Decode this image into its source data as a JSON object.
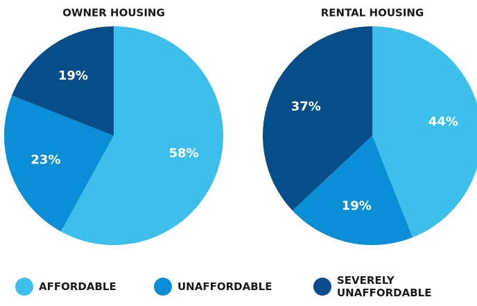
{
  "chart_data": [
    {
      "type": "pie",
      "title": "OWNER HOUSING",
      "categories": [
        "AFFORDABLE",
        "UNAFFORDABLE",
        "SEVERELY UNAFFORDABLE"
      ],
      "values": [
        58,
        23,
        19
      ],
      "value_labels": [
        "58%",
        "23%",
        "19%"
      ],
      "colors": [
        "#3dbfec",
        "#0a8fd6",
        "#064d8a"
      ]
    },
    {
      "type": "pie",
      "title": "RENTAL HOUSING",
      "categories": [
        "AFFORDABLE",
        "UNAFFORDABLE",
        "SEVERELY UNAFFORDABLE"
      ],
      "values": [
        44,
        19,
        37
      ],
      "value_labels": [
        "44%",
        "19%",
        "37%"
      ],
      "colors": [
        "#3dbfec",
        "#0a8fd6",
        "#064d8a"
      ]
    }
  ]
}
